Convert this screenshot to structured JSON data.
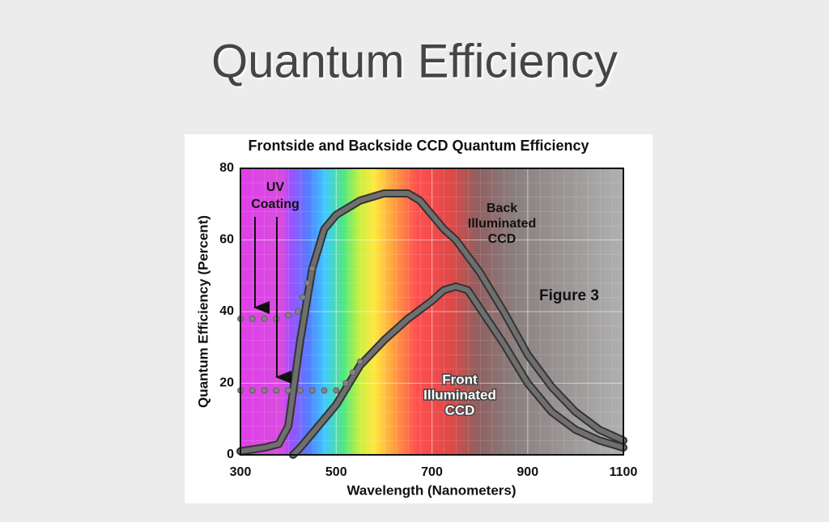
{
  "slide_title": "Quantum Efficiency",
  "chart_data": {
    "type": "line",
    "title": "Frontside and Backside CCD Quantum Efficiency",
    "x_label": "Wavelength (Nanometers)",
    "y_label": "Quantum Efficiency (Percent)",
    "xlim": [
      300,
      1100
    ],
    "xticks": [
      300,
      500,
      700,
      900,
      1100
    ],
    "ylim": [
      0,
      80
    ],
    "yticks": [
      0,
      20,
      40,
      60,
      80
    ],
    "grid": true,
    "series": [
      {
        "color": "#6f6f6f",
        "style": "solid",
        "x": [
          300,
          350,
          380,
          400,
          425,
          450,
          475,
          500,
          550,
          600,
          650,
          675,
          700,
          725,
          750,
          800,
          850,
          900,
          950,
          1000,
          1050,
          1100
        ],
        "values": [
          1,
          2,
          3,
          8,
          32,
          52,
          63,
          67,
          71,
          73,
          73,
          71,
          67,
          63,
          60,
          51,
          40,
          28,
          19,
          12,
          7,
          4
        ]
      },
      {
        "color": "#6f6f6f",
        "style": "solid",
        "x": [
          410,
          425,
          450,
          475,
          500,
          550,
          600,
          650,
          700,
          725,
          750,
          775,
          800,
          850,
          900,
          950,
          1000,
          1050,
          1100
        ],
        "values": [
          0,
          2,
          6,
          10,
          14,
          25,
          32,
          38,
          43,
          46,
          47,
          46,
          41,
          31,
          20,
          12,
          7,
          4,
          2
        ]
      },
      {
        "color": "#8a7f8a",
        "style": "dotted",
        "x": [
          300,
          325,
          350,
          375,
          400,
          420,
          430,
          440,
          450
        ],
        "values": [
          38,
          38,
          38,
          38,
          39,
          40,
          44,
          48,
          52
        ]
      },
      {
        "color": "#8a7f8a",
        "style": "dotted",
        "x": [
          300,
          325,
          350,
          375,
          400,
          425,
          450,
          475,
          500,
          520,
          535,
          550
        ],
        "values": [
          18,
          18,
          18,
          18,
          18,
          18,
          18,
          18,
          18,
          20,
          23,
          26
        ]
      }
    ],
    "annotations": [
      {
        "lines": [
          "UV",
          "Coating"
        ]
      },
      {
        "lines": [
          "Back",
          "Illuminated",
          "CCD"
        ]
      },
      {
        "lines": [
          "Figure 3"
        ]
      },
      {
        "lines": [
          "Front",
          "Illuminated",
          "CCD"
        ]
      }
    ]
  }
}
